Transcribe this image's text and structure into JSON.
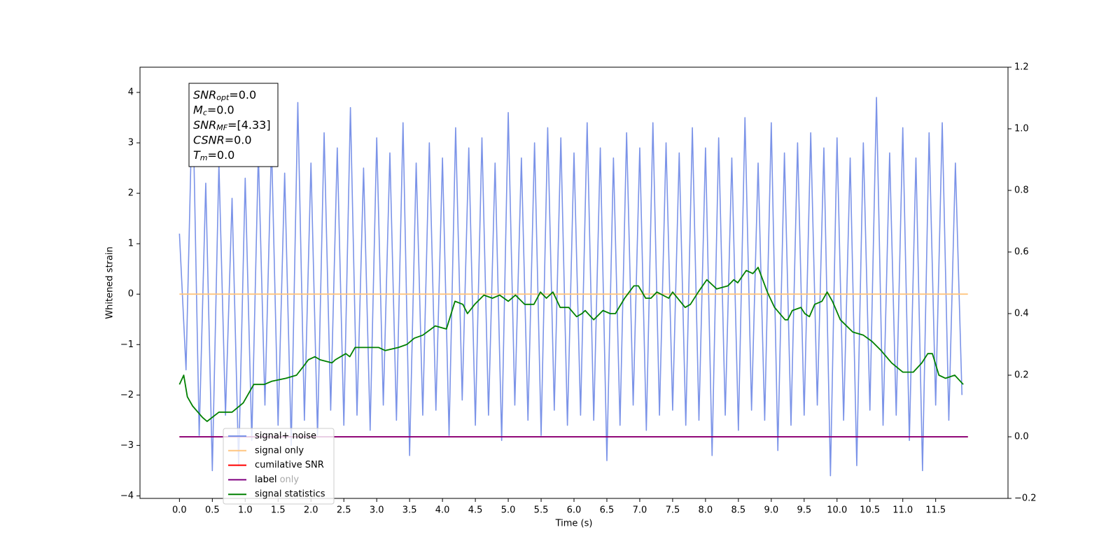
{
  "chart_data": {
    "type": "line",
    "xlabel": "Time (s)",
    "ylabel": "Whitened strain",
    "xlim": [
      -0.6,
      12.6
    ],
    "ylim": [
      -4.05,
      4.5
    ],
    "y2lim": [
      -0.2,
      1.2
    ],
    "xticks": [
      {
        "value": 0,
        "label": "0.0"
      },
      0.5,
      {
        "value": 1,
        "label": "1.0"
      },
      1.5,
      {
        "value": 2,
        "label": "2.0"
      },
      2.5,
      {
        "value": 3,
        "label": "3.0"
      },
      3.5,
      {
        "value": 4,
        "label": "4.0"
      },
      4.5,
      {
        "value": 5,
        "label": "5.0"
      },
      5.5,
      {
        "value": 6,
        "label": "6.0"
      },
      6.5,
      {
        "value": 7,
        "label": "7.0"
      },
      7.5,
      {
        "value": 8,
        "label": "8.0"
      },
      8.5,
      {
        "value": 9,
        "label": "9.0"
      },
      9.5,
      {
        "value": 10,
        "label": "10.0"
      },
      10.5,
      {
        "value": 11,
        "label": "11.0"
      },
      11.5
    ],
    "yticks": [
      {
        "value": -4,
        "label": "−4"
      },
      {
        "value": -3,
        "label": "−3"
      },
      {
        "value": -2,
        "label": "−2"
      },
      {
        "value": -1,
        "label": "−1"
      },
      0,
      1,
      2,
      3,
      4
    ],
    "y2ticks": [
      {
        "value": -0.2,
        "label": "−0.2"
      },
      {
        "value": 0,
        "label": "0.0"
      },
      0.2,
      0.4,
      0.6,
      0.8,
      {
        "value": 1,
        "label": "1.0"
      },
      1.2
    ],
    "series": [
      {
        "name": "signal+ noise",
        "color": "#7b93e8",
        "x": [
          0.0,
          0.1,
          0.2,
          0.3,
          0.4,
          0.5,
          0.6,
          0.7,
          0.8,
          0.9,
          1.0,
          1.1,
          1.2,
          1.3,
          1.4,
          1.5,
          1.6,
          1.7,
          1.8,
          1.9,
          2.0,
          2.1,
          2.2,
          2.3,
          2.4,
          2.5,
          2.6,
          2.7,
          2.8,
          2.9,
          3.0,
          3.1,
          3.2,
          3.3,
          3.4,
          3.5,
          3.6,
          3.7,
          3.8,
          3.9,
          4.0,
          4.1,
          4.2,
          4.3,
          4.4,
          4.5,
          4.6,
          4.7,
          4.8,
          4.9,
          5.0,
          5.1,
          5.2,
          5.3,
          5.4,
          5.5,
          5.6,
          5.7,
          5.8,
          5.9,
          6.0,
          6.1,
          6.2,
          6.3,
          6.4,
          6.5,
          6.6,
          6.7,
          6.8,
          6.9,
          7.0,
          7.1,
          7.2,
          7.3,
          7.4,
          7.5,
          7.6,
          7.7,
          7.8,
          7.9,
          8.0,
          8.1,
          8.2,
          8.3,
          8.4,
          8.5,
          8.6,
          8.7,
          8.8,
          8.9,
          9.0,
          9.1,
          9.2,
          9.3,
          9.4,
          9.5,
          9.6,
          9.7,
          9.8,
          9.9,
          10.0,
          10.1,
          10.2,
          10.3,
          10.4,
          10.5,
          10.6,
          10.7,
          10.8,
          10.9,
          11.0,
          11.1,
          11.2,
          11.3,
          11.4,
          11.5,
          11.6,
          11.7,
          11.8,
          11.9
        ],
        "values": [
          1.2,
          -1.5,
          4.1,
          -2.8,
          2.2,
          -3.5,
          2.6,
          -2.4,
          1.9,
          -3.4,
          2.3,
          -2.9,
          2.8,
          -2.2,
          3.0,
          -2.6,
          2.4,
          -3.0,
          3.8,
          -2.5,
          2.6,
          -2.8,
          3.2,
          -2.3,
          2.9,
          -2.6,
          3.7,
          -2.4,
          2.5,
          -2.7,
          3.1,
          -2.2,
          2.8,
          -2.5,
          3.4,
          -3.2,
          2.6,
          -2.4,
          3.0,
          -2.3,
          2.7,
          -2.8,
          3.3,
          -2.1,
          2.9,
          -2.6,
          3.1,
          -2.4,
          2.6,
          -2.9,
          3.6,
          -2.2,
          2.7,
          -2.5,
          3.0,
          -2.8,
          3.3,
          -2.3,
          3.1,
          -2.6,
          2.8,
          -2.4,
          3.4,
          -2.5,
          2.9,
          -3.3,
          2.7,
          -2.6,
          3.2,
          -2.2,
          2.9,
          -2.7,
          3.4,
          -2.4,
          3.0,
          -2.3,
          2.8,
          -2.6,
          3.3,
          -2.5,
          2.9,
          -3.2,
          3.1,
          -2.4,
          2.7,
          -2.7,
          3.5,
          -2.3,
          2.6,
          -2.5,
          3.4,
          -3.1,
          2.8,
          -2.6,
          3.0,
          -2.4,
          3.2,
          -2.2,
          2.9,
          -3.6,
          3.1,
          -2.5,
          2.7,
          -3.4,
          3.0,
          -2.3,
          3.9,
          -2.6,
          2.8,
          -2.4,
          3.3,
          -2.9,
          2.7,
          -3.5,
          3.2,
          -2.2,
          3.4,
          -2.5,
          2.6,
          -2.0
        ]
      },
      {
        "name": "signal only",
        "color": "#ffc580",
        "x": [
          0.0,
          11.99
        ],
        "values": [
          0,
          0
        ]
      },
      {
        "name": "cumilative SNR",
        "color": "#ff0000",
        "axis": "y2",
        "x": [
          0.0,
          11.99
        ],
        "values": [
          0,
          0
        ]
      },
      {
        "name": "label",
        "color": "#800080",
        "axis": "y2",
        "x": [
          0.0,
          11.99
        ],
        "values": [
          0,
          0
        ]
      },
      {
        "name": "signal statistics",
        "color": "#008000",
        "axis": "y2",
        "x": [
          0.0,
          0.065,
          0.12,
          0.2,
          0.35,
          0.42,
          0.6,
          0.8,
          0.97,
          1.13,
          1.29,
          1.4,
          1.62,
          1.78,
          1.89,
          1.96,
          2.06,
          2.14,
          2.32,
          2.37,
          2.53,
          2.59,
          2.67,
          2.86,
          3.03,
          3.13,
          3.33,
          3.46,
          3.57,
          3.7,
          3.89,
          4.06,
          4.19,
          4.31,
          4.38,
          4.49,
          4.63,
          4.76,
          4.87,
          5.0,
          5.11,
          5.25,
          5.39,
          5.49,
          5.58,
          5.68,
          5.79,
          5.92,
          6.04,
          6.12,
          6.17,
          6.3,
          6.44,
          6.55,
          6.63,
          6.77,
          6.91,
          6.98,
          7.09,
          7.17,
          7.26,
          7.44,
          7.5,
          7.69,
          7.77,
          7.89,
          8.02,
          8.17,
          8.34,
          8.43,
          8.49,
          8.62,
          8.72,
          8.8,
          8.94,
          9.05,
          9.21,
          9.25,
          9.32,
          9.45,
          9.51,
          9.58,
          9.66,
          9.77,
          9.85,
          9.93,
          10.05,
          10.24,
          10.4,
          10.53,
          10.67,
          10.83,
          11.0,
          11.16,
          11.29,
          11.38,
          11.45,
          11.55,
          11.65,
          11.79,
          11.92
        ],
        "values": [
          0.17,
          0.2,
          0.13,
          0.1,
          0.063,
          0.05,
          0.08,
          0.08,
          0.11,
          0.17,
          0.17,
          0.18,
          0.19,
          0.2,
          0.23,
          0.25,
          0.26,
          0.25,
          0.24,
          0.25,
          0.27,
          0.26,
          0.29,
          0.29,
          0.29,
          0.28,
          0.29,
          0.3,
          0.32,
          0.33,
          0.36,
          0.35,
          0.44,
          0.43,
          0.4,
          0.43,
          0.46,
          0.45,
          0.46,
          0.44,
          0.46,
          0.43,
          0.43,
          0.47,
          0.45,
          0.47,
          0.42,
          0.42,
          0.39,
          0.4,
          0.41,
          0.38,
          0.41,
          0.4,
          0.4,
          0.45,
          0.49,
          0.49,
          0.45,
          0.45,
          0.47,
          0.45,
          0.47,
          0.42,
          0.43,
          0.47,
          0.51,
          0.48,
          0.49,
          0.51,
          0.5,
          0.54,
          0.53,
          0.55,
          0.47,
          0.42,
          0.38,
          0.38,
          0.41,
          0.42,
          0.4,
          0.39,
          0.43,
          0.44,
          0.47,
          0.44,
          0.38,
          0.34,
          0.33,
          0.31,
          0.28,
          0.24,
          0.21,
          0.21,
          0.24,
          0.27,
          0.27,
          0.2,
          0.19,
          0.2,
          0.17
        ]
      }
    ],
    "legend": "lower left",
    "legend_ghost_text": "label only",
    "annotation": [
      {
        "symbol": "SNR",
        "subscript": "opt",
        "text": "=0.0"
      },
      {
        "symbol": "M",
        "subscript": "c",
        "text": "=0.0"
      },
      {
        "symbol": "SNR",
        "subscript": "MF",
        "text": "=[4.33]"
      },
      {
        "symbol": "CSNR",
        "subscript": null,
        "text": "=0.0"
      },
      {
        "symbol": "T",
        "subscript": "m",
        "text": "=0.0"
      }
    ]
  }
}
